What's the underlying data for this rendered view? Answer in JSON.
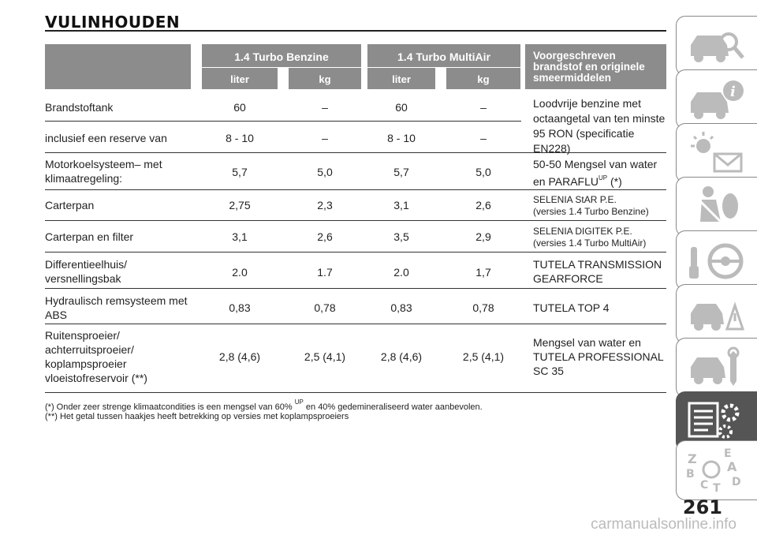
{
  "title": "VULINHOUDEN",
  "header": {
    "col1": "1.4 Turbo Benzine",
    "col2": "1.4 Turbo MultiAir",
    "sub_liter": "liter",
    "sub_kg": "kg",
    "last_line1": "Voorgeschreven",
    "last_line2": "brandstof en originele",
    "last_line3": "smeermiddelen"
  },
  "rows": [
    {
      "label1": "Brandstoftank",
      "v1": "60",
      "v2": "–",
      "v3": "60",
      "v4": "–"
    },
    {
      "label1": "inclusief een reserve van",
      "v1": "8 - 10",
      "v2": "–",
      "v3": "8 - 10",
      "v4": "–"
    },
    {
      "label1": "Motorkoelsysteem– met",
      "label2": "klimaatregeling:",
      "v1": "5,7",
      "v2": "5,0",
      "v3": "5,7",
      "v4": "5,0",
      "p1": "50-50 Mengsel van water",
      "p2": "en PARAFLU",
      "p2sup": "UP",
      "p2tail": " (*)"
    },
    {
      "label1": "Carterpan",
      "v1": "2,75",
      "v2": "2,3",
      "v3": "3,1",
      "v4": "2,6",
      "p1": "SELENIA StAR P.E.",
      "p2": "(versies 1.4 Turbo Benzine)"
    },
    {
      "label1": "Carterpan en filter",
      "v1": "3,1",
      "v2": "2,6",
      "v3": "3,5",
      "v4": "2,9",
      "p1": "SELENIA DIGITEK P.E.",
      "p2": "(versies 1.4 Turbo MultiAir)"
    },
    {
      "label1": "Differentieelhuis/",
      "label2": "versnellingsbak",
      "v1": "2.0",
      "v2": "1.7",
      "v3": "2.0",
      "v4": "1,7",
      "p1": "TUTELA TRANSMISSION",
      "p2": "GEARFORCE"
    },
    {
      "label1": "Hydraulisch remsysteem met",
      "label2": "ABS",
      "v1": "0,83",
      "v2": "0,78",
      "v3": "0,83",
      "v4": "0,78",
      "p1": "TUTELA TOP 4"
    },
    {
      "label1": "Ruitensproeier/",
      "label2": "achterruitsproeier/",
      "label3": "koplampsproeier",
      "label4": "vloeistofreservoir (**)",
      "v1": "2,8 (4,6)",
      "v2": "2,5 (4,1)",
      "v3": "2,8 (4,6)",
      "v4": "2,5 (4,1)",
      "p1": "Mengsel van water en",
      "p2": "TUTELA PROFESSIONAL",
      "p3": "SC 35"
    }
  ],
  "fuel_spec": [
    "Loodvrije benzine met",
    "octaangetal van ten minste",
    "95 RON (specificatie",
    "EN228)"
  ],
  "notes": {
    "n1_a": "(*) Onder zeer strenge klimaatcondities is een mengsel van 60% ",
    "n1_sup": "UP",
    "n1_b": " en 40% gedemineraliseerd water aanbevolen.",
    "n2": "(**) Het getal tussen haakjes heeft betrekking op versies met koplampsproeiers"
  },
  "page_number": "261",
  "watermark": "carmanualsonline.info",
  "sidebar_tabs": [
    {
      "name": "car-search-icon"
    },
    {
      "name": "car-info-icon"
    },
    {
      "name": "warning-lights-icon"
    },
    {
      "name": "airbag-safety-icon"
    },
    {
      "name": "steering-controls-icon"
    },
    {
      "name": "emergency-icon"
    },
    {
      "name": "maintenance-icon"
    },
    {
      "name": "technical-data-icon",
      "active": true
    },
    {
      "name": "alphabetical-index-icon"
    }
  ]
}
